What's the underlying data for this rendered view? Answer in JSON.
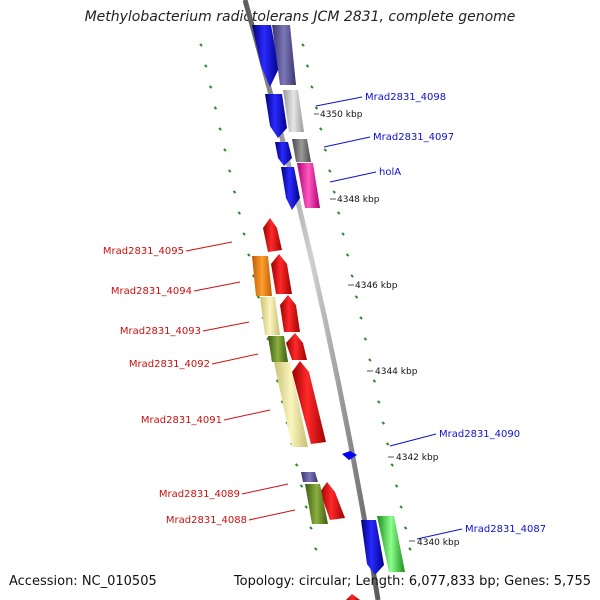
{
  "title": "Methylobacterium radiotolerans JCM 2831, complete genome",
  "footer": {
    "accession": "Accession: NC_010505",
    "topology": "Topology: circular; Length: 6,077,833 bp; Genes: 5,755"
  },
  "ticks": [
    "4350 kbp",
    "4348 kbp",
    "4346 kbp",
    "4344 kbp",
    "4342 kbp",
    "4340 kbp"
  ],
  "labels_forward": [
    "Mrad2831_4098",
    "Mrad2831_4097",
    "holA",
    "Mrad2831_4090",
    "Mrad2831_4087"
  ],
  "labels_reverse": [
    "Mrad2831_4095",
    "Mrad2831_4094",
    "Mrad2831_4093",
    "Mrad2831_4092",
    "Mrad2831_4091",
    "Mrad2831_4089",
    "Mrad2831_4088"
  ],
  "colors": {
    "forward_label": "#1010cc",
    "reverse_label": "#cc1010",
    "blue_gene": "#0000ee",
    "red_gene": "#ee0000",
    "gc_dash": "#2a8a2a",
    "backbone": "#8a8a8a"
  }
}
